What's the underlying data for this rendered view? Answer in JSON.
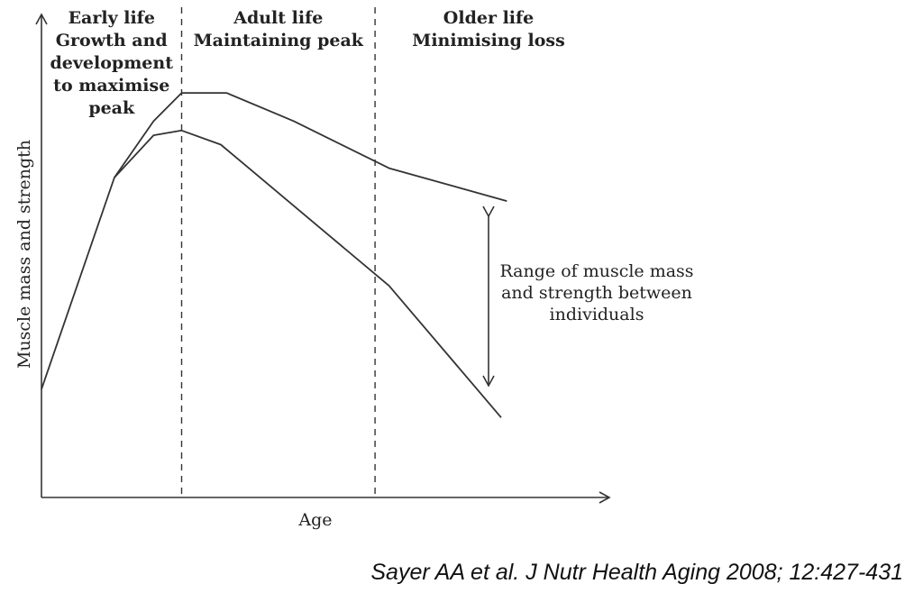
{
  "chart_data": {
    "type": "line",
    "xlabel": "Age",
    "ylabel": "Muscle mass and strength",
    "xlim": [
      0,
      100
    ],
    "ylim": [
      0,
      100
    ],
    "grid": false,
    "legend": "none",
    "phases": [
      {
        "lines": [
          "Early life",
          "Growth and",
          "development",
          "to maximise",
          "peak"
        ],
        "x_start": 0,
        "x_end": 25
      },
      {
        "lines": [
          "Adult life",
          "Maintaining peak"
        ],
        "x_start": 25,
        "x_end": 59.5
      },
      {
        "lines": [
          "Older life",
          "Minimising loss"
        ],
        "x_start": 59.5,
        "x_end": 100
      }
    ],
    "series": [
      {
        "x": [
          0,
          13,
          20,
          25,
          33,
          45,
          62,
          83
        ],
        "values": [
          23,
          68,
          80,
          86,
          86,
          80,
          70,
          63
        ]
      },
      {
        "x": [
          13,
          20,
          25,
          32,
          37,
          62,
          82
        ],
        "values": [
          68,
          77,
          78,
          75,
          70,
          45,
          17
        ]
      }
    ],
    "annotations": [
      {
        "lines": [
          "Range of muscle mass",
          "and strength between",
          "individuals"
        ]
      }
    ]
  },
  "citation": "Sayer AA et al. J Nutr Health Aging 2008; 12:427-431",
  "colors": {
    "line": "#333333",
    "text": "#222222"
  }
}
